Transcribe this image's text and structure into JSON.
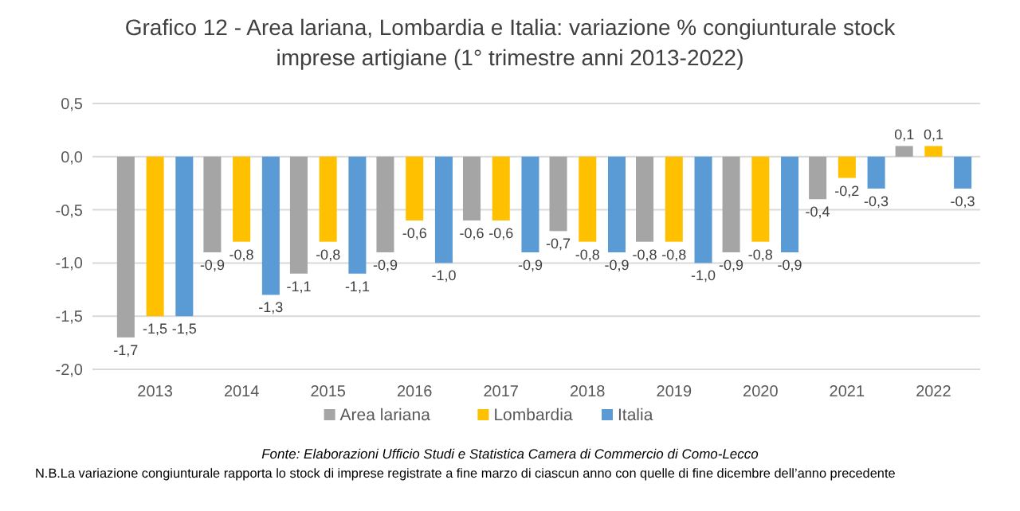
{
  "chart_data": {
    "type": "bar",
    "title": "Grafico 12 - Area lariana, Lombardia e Italia: variazione % congiunturale stock imprese artigiane (1° trimestre anni 2013-2022)",
    "categories": [
      "2013",
      "2014",
      "2015",
      "2016",
      "2017",
      "2018",
      "2019",
      "2020",
      "2021",
      "2022"
    ],
    "series": [
      {
        "name": "Area lariana",
        "color": "#a5a5a5",
        "values": [
          -1.7,
          -0.9,
          -1.1,
          -0.9,
          -0.6,
          -0.7,
          -0.8,
          -0.9,
          -0.4,
          0.1
        ],
        "value_labels": [
          "-1,7",
          "-0,9",
          "-1,1",
          "-0,9",
          "-0,6",
          "-0,7",
          "-0,8",
          "-0,9",
          "-0,4",
          "0,1"
        ]
      },
      {
        "name": "Lombardia",
        "color": "#ffc000",
        "values": [
          -1.5,
          -0.8,
          -0.8,
          -0.6,
          -0.6,
          -0.8,
          -0.8,
          -0.8,
          -0.2,
          0.1
        ],
        "value_labels": [
          "-1,5",
          "-0,8",
          "-0,8",
          "-0,6",
          "-0,6",
          "-0,8",
          "-0,8",
          "-0,8",
          "-0,2",
          "0,1"
        ]
      },
      {
        "name": "Italia",
        "color": "#5b9bd5",
        "values": [
          -1.5,
          -1.3,
          -1.1,
          -1.0,
          -0.9,
          -0.9,
          -1.0,
          -0.9,
          -0.3,
          -0.3
        ],
        "value_labels": [
          "-1,5",
          "-1,3",
          "-1,1",
          "-1,0",
          "-0,9",
          "-0,9",
          "-1,0",
          "-0,9",
          "-0,3",
          "-0,3"
        ]
      }
    ],
    "ylim": [
      -2.0,
      0.5
    ],
    "yticks": [
      {
        "value": -2.0,
        "label": "-2,0"
      },
      {
        "value": -1.5,
        "label": "-1,5"
      },
      {
        "value": -1.0,
        "label": "-1,0"
      },
      {
        "value": -0.5,
        "label": "-0,5"
      },
      {
        "value": 0.0,
        "label": "0,0"
      },
      {
        "value": 0.5,
        "label": "0,5"
      }
    ],
    "grid": "y",
    "legend": "bottom",
    "annotations": [
      "Fonte: Elaborazioni Ufficio Studi e Statistica Camera di Commercio di Como-Lecco",
      "N.B.La variazione congiunturale rapporta lo stock di imprese registrate a fine marzo di ciascun anno con quelle di fine dicembre dell’anno precedente"
    ]
  }
}
